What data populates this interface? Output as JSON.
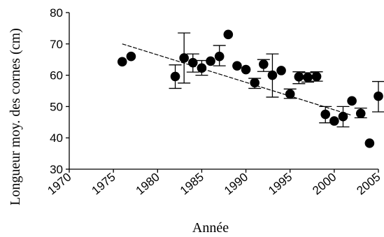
{
  "chart_data": {
    "type": "scatter",
    "xlabel": "Année",
    "ylabel": "Longueur moy. des cornes  (cm)",
    "xlim": [
      1970,
      2005
    ],
    "ylim": [
      30,
      80
    ],
    "xticks": [
      1970,
      1975,
      1980,
      1985,
      1990,
      1995,
      2000,
      2005
    ],
    "yticks": [
      30,
      40,
      50,
      60,
      70,
      80
    ],
    "grid": false,
    "legend": "none",
    "marker_color": "#000000",
    "points": [
      {
        "x": 1976,
        "y": 64.3
      },
      {
        "x": 1977,
        "y": 66.0
      },
      {
        "x": 1982,
        "y": 59.6,
        "err_low": 55.8,
        "err_high": 63.3
      },
      {
        "x": 1983,
        "y": 65.5,
        "err_low": 57.5,
        "err_high": 73.5
      },
      {
        "x": 1984,
        "y": 64.0,
        "err_low": 61.0,
        "err_high": 66.8
      },
      {
        "x": 1985,
        "y": 62.3,
        "err_low": 60.0,
        "err_high": 64.7
      },
      {
        "x": 1986,
        "y": 64.5
      },
      {
        "x": 1987,
        "y": 66.0,
        "err_low": 63.0,
        "err_high": 69.5
      },
      {
        "x": 1988,
        "y": 73.0
      },
      {
        "x": 1989,
        "y": 63.0
      },
      {
        "x": 1990,
        "y": 61.8
      },
      {
        "x": 1991,
        "y": 57.6,
        "err_low": 55.8,
        "err_high": 59.0
      },
      {
        "x": 1992,
        "y": 63.5,
        "err_low": 61.2,
        "err_high": 65.0
      },
      {
        "x": 1993,
        "y": 60.0,
        "err_low": 53.0,
        "err_high": 66.8
      },
      {
        "x": 1994,
        "y": 61.5
      },
      {
        "x": 1995,
        "y": 54.0,
        "err_low": 52.6,
        "err_high": 55.6
      },
      {
        "x": 1996,
        "y": 59.5,
        "err_low": 57.3,
        "err_high": 61.1
      },
      {
        "x": 1997,
        "y": 59.3,
        "err_low": 57.8,
        "err_high": 60.8
      },
      {
        "x": 1998,
        "y": 59.6,
        "err_low": 58.1,
        "err_high": 61.1
      },
      {
        "x": 1999,
        "y": 47.5,
        "err_low": 44.8,
        "err_high": 50.0
      },
      {
        "x": 2000,
        "y": 45.4
      },
      {
        "x": 2001,
        "y": 46.8,
        "err_low": 43.5,
        "err_high": 50.0
      },
      {
        "x": 2002,
        "y": 51.8
      },
      {
        "x": 2003,
        "y": 47.8,
        "err_low": 46.4,
        "err_high": 49.5
      },
      {
        "x": 2004,
        "y": 38.3
      },
      {
        "x": 2005,
        "y": 53.3,
        "err_low": 48.3,
        "err_high": 58.0
      }
    ],
    "trendline": {
      "style": "dashed",
      "x": [
        1976,
        2002
      ],
      "y": [
        70.0,
        47.2
      ]
    }
  }
}
